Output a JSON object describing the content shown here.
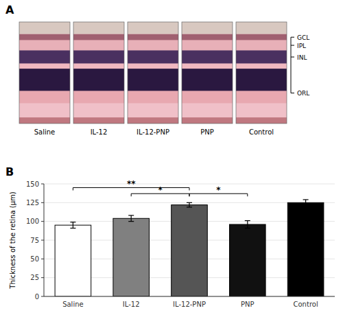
{
  "chart_data": [
    {
      "type": "image_panels",
      "panel_label": "A",
      "labels": [
        "Saline",
        "IL-12",
        "IL-12-PNP",
        "PNP",
        "Control"
      ],
      "layer_labels": [
        "GCL",
        "IPL",
        "INL",
        "ORL"
      ]
    },
    {
      "type": "bar",
      "panel_label": "B",
      "categories": [
        "Saline",
        "IL-12",
        "IL-12-PNP",
        "PNP",
        "Control"
      ],
      "values": [
        95,
        104,
        122,
        96,
        125
      ],
      "errors": [
        4,
        4,
        3,
        5,
        4
      ],
      "colors": [
        "#ffffff",
        "#808080",
        "#555555",
        "#111111",
        "#000000"
      ],
      "ylabel": "Thickness of the retina (μm)",
      "ylim": [
        0,
        150
      ],
      "yticks": [
        0,
        25,
        50,
        75,
        100,
        125,
        150
      ],
      "annotations": [
        {
          "text": "**",
          "from": "Saline",
          "to": "IL-12-PNP",
          "y": 145
        },
        {
          "text": "*",
          "from": "IL-12",
          "to": "IL-12-PNP",
          "y": 137
        },
        {
          "text": "*",
          "from": "IL-12-PNP",
          "to": "PNP",
          "y": 137
        }
      ]
    }
  ]
}
